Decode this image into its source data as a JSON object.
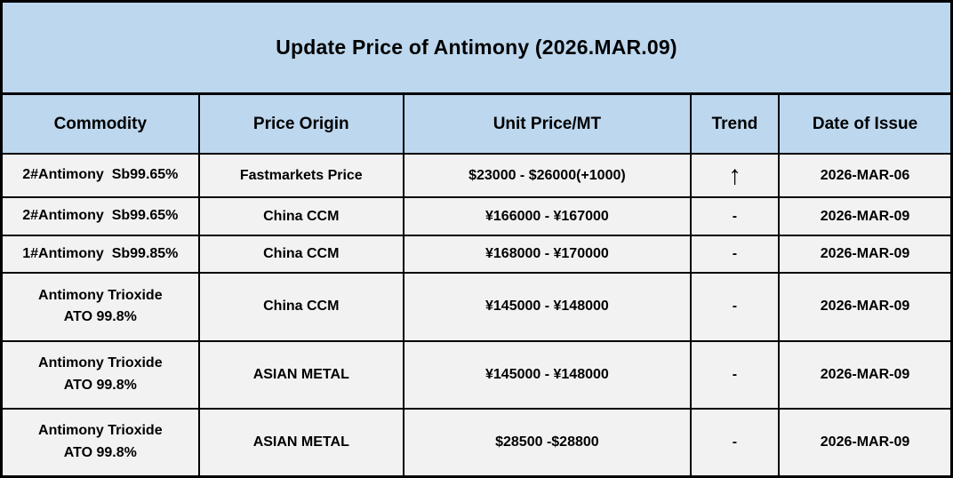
{
  "title": "Update Price of Antimony (2026.MAR.09)",
  "colors": {
    "header_bg": "#bdd7ee",
    "row_bg": "#f2f2f2",
    "border": "#000000",
    "text": "#000000"
  },
  "table": {
    "columns": {
      "commodity": "Commodity",
      "origin": "Price Origin",
      "price": "Unit Price/MT",
      "trend": "Trend",
      "date": "Date of Issue"
    },
    "rows": [
      {
        "commodity": "2#Antimony  Sb99.65%",
        "origin": "Fastmarkets Price",
        "price": "$23000 - $26000(+1000)",
        "trend": "↑",
        "trend_meaning": "up",
        "date": "2026-MAR-06"
      },
      {
        "commodity": "2#Antimony  Sb99.65%",
        "origin": "China CCM",
        "price": "¥166000 - ¥167000",
        "trend": "-",
        "trend_meaning": "unchanged",
        "date": "2026-MAR-09"
      },
      {
        "commodity": "1#Antimony  Sb99.85%",
        "origin": "China CCM",
        "price": "¥168000 - ¥170000",
        "trend": "-",
        "trend_meaning": "unchanged",
        "date": "2026-MAR-09"
      },
      {
        "commodity": "Antimony Trioxide\nATO 99.8%",
        "origin": "China CCM",
        "price": "¥145000 - ¥148000",
        "trend": "-",
        "trend_meaning": "unchanged",
        "date": "2026-MAR-09"
      },
      {
        "commodity": "Antimony Trioxide\nATO 99.8%",
        "origin": "ASIAN METAL",
        "price": "¥145000 - ¥148000",
        "trend": "-",
        "trend_meaning": "unchanged",
        "date": "2026-MAR-09"
      },
      {
        "commodity": "Antimony Trioxide\nATO 99.8%",
        "origin": "ASIAN METAL",
        "price": "$28500 -$28800",
        "trend": "-",
        "trend_meaning": "unchanged",
        "date": "2026-MAR-09"
      }
    ]
  },
  "chart_data": {
    "type": "table",
    "title": "Update Price of Antimony (2026.MAR.09)",
    "columns": [
      "Commodity",
      "Price Origin",
      "Unit Price/MT",
      "Trend",
      "Date of Issue"
    ],
    "rows": [
      [
        "2#Antimony  Sb99.65%",
        "Fastmarkets Price",
        "$23000 - $26000(+1000)",
        "↑",
        "2026-MAR-06"
      ],
      [
        "2#Antimony  Sb99.65%",
        "China CCM",
        "¥166000 - ¥167000",
        "-",
        "2026-MAR-09"
      ],
      [
        "1#Antimony  Sb99.85%",
        "China CCM",
        "¥168000 - ¥170000",
        "-",
        "2026-MAR-09"
      ],
      [
        "Antimony Trioxide ATO 99.8%",
        "China CCM",
        "¥145000 - ¥148000",
        "-",
        "2026-MAR-09"
      ],
      [
        "Antimony Trioxide ATO 99.8%",
        "ASIAN METAL",
        "¥145000 - ¥148000",
        "-",
        "2026-MAR-09"
      ],
      [
        "Antimony Trioxide ATO 99.8%",
        "ASIAN METAL",
        "$28500 -$28800",
        "-",
        "2026-MAR-09"
      ]
    ]
  }
}
